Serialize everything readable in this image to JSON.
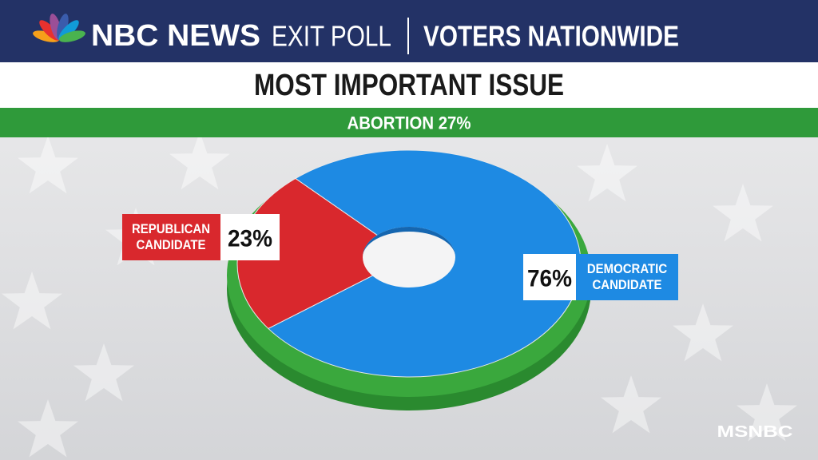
{
  "header": {
    "brand": "NBC NEWS",
    "program": "EXIT POLL",
    "scope": "VOTERS NATIONWIDE"
  },
  "chart_data": {
    "type": "pie",
    "title": "MOST IMPORTANT ISSUE",
    "subtitle": "ABORTION 27%",
    "categories": [
      "REPUBLICAN CANDIDATE",
      "DEMOCRATIC CANDIDATE"
    ],
    "values": [
      23,
      76
    ],
    "value_labels": [
      "23%",
      "76%"
    ],
    "colors": [
      "#d9282d",
      "#1e8ae3"
    ]
  },
  "watermark": "MSNBC"
}
